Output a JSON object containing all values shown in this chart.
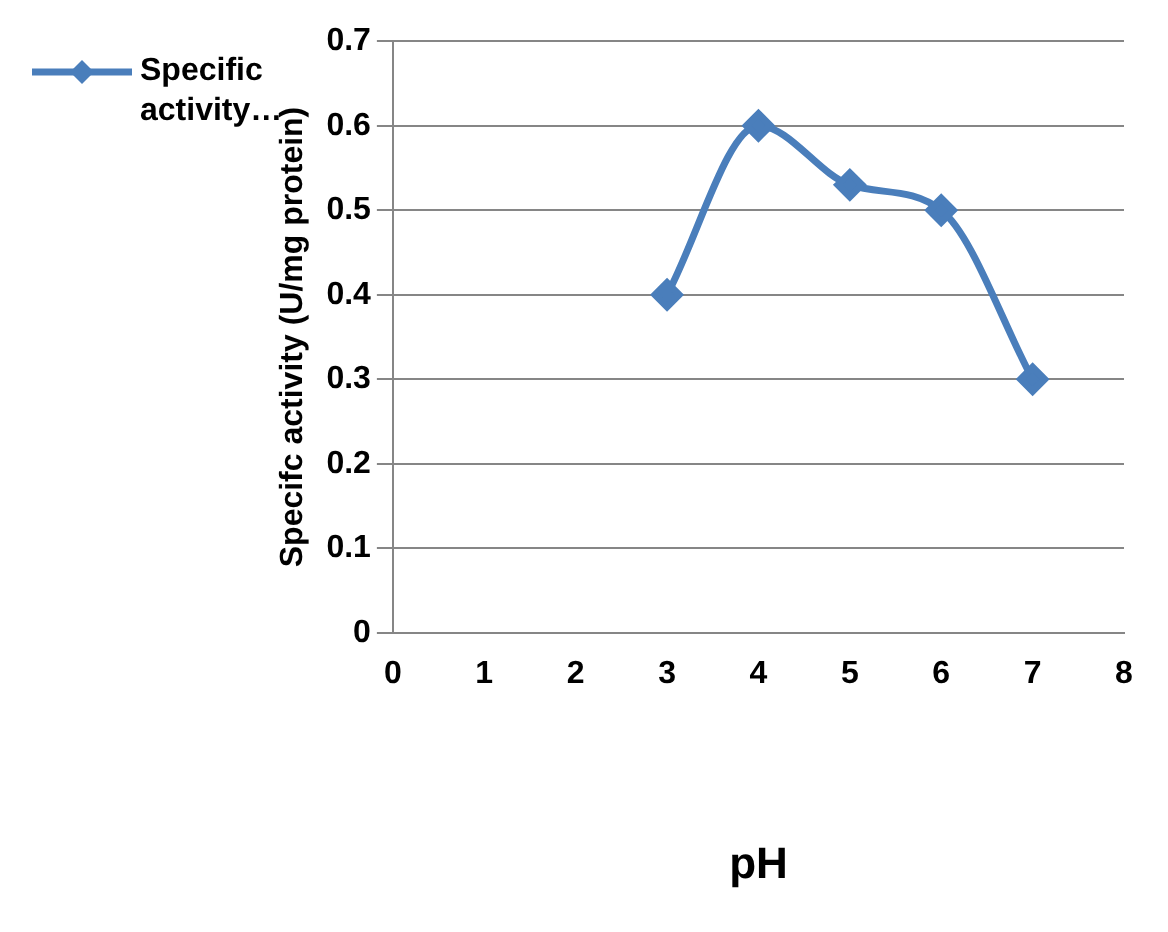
{
  "chart_data": {
    "type": "line",
    "xlabel": "pH",
    "ylabel": "Specifc activity (U/mg protein)",
    "x": [
      3,
      4,
      5,
      6,
      7
    ],
    "series": [
      {
        "name": "Specific activity…",
        "color": "#4a7ebb",
        "values": [
          0.4,
          0.6,
          0.53,
          0.5,
          0.3
        ]
      }
    ],
    "xlim": [
      0,
      8
    ],
    "xticks": [
      0,
      1,
      2,
      3,
      4,
      5,
      6,
      7,
      8
    ],
    "ylim": [
      0,
      0.7
    ],
    "yticks": [
      0,
      0.1,
      0.2,
      0.3,
      0.4,
      0.5,
      0.6,
      0.7
    ],
    "grid": "y",
    "legend": "top left",
    "marker": "diamond",
    "line_style": "solid"
  }
}
